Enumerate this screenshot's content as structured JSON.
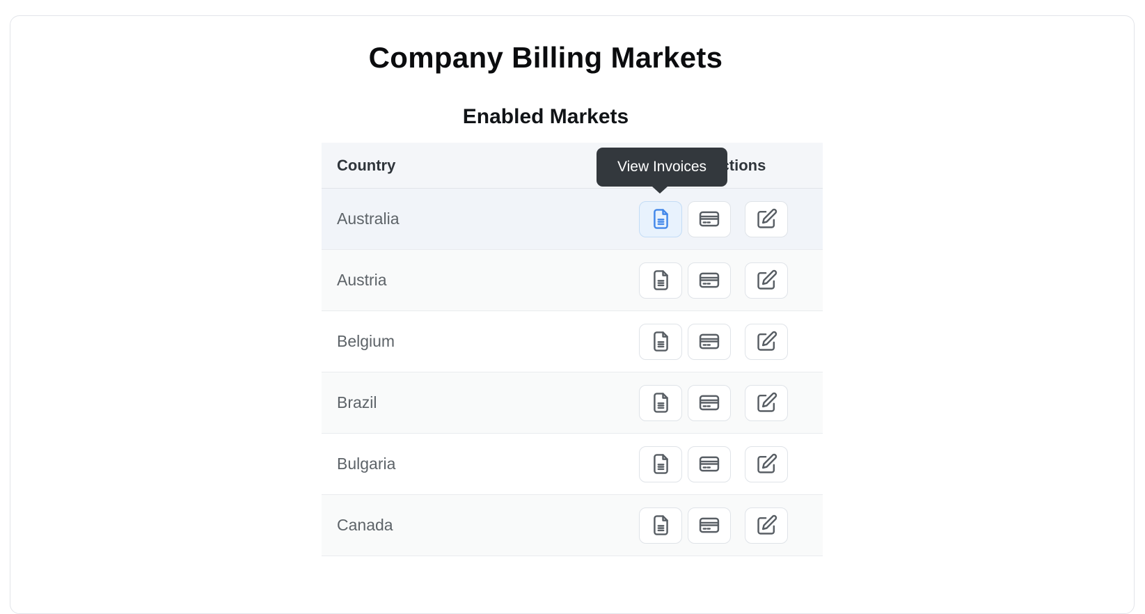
{
  "page": {
    "title": "Company Billing Markets",
    "subtitle": "Enabled Markets"
  },
  "tooltip": {
    "text": "View Invoices"
  },
  "table": {
    "headers": {
      "country": "Country",
      "actions": "Actions"
    },
    "action_buttons": [
      {
        "name": "view-invoices-button",
        "icon": "file-text-icon"
      },
      {
        "name": "payment-methods-button",
        "icon": "credit-card-icon"
      },
      {
        "name": "edit-market-button",
        "icon": "edit-icon"
      }
    ],
    "rows": [
      {
        "country": "Australia",
        "highlighted": true,
        "active_button": "view-invoices-button"
      },
      {
        "country": "Austria",
        "highlighted": false
      },
      {
        "country": "Belgium",
        "highlighted": false
      },
      {
        "country": "Brazil",
        "highlighted": false
      },
      {
        "country": "Bulgaria",
        "highlighted": false
      },
      {
        "country": "Canada",
        "highlighted": false
      }
    ]
  },
  "colors": {
    "accent_blue": "#4388ea",
    "active_button_bg": "#e8f2fd",
    "active_button_border": "#c3dcf6",
    "tooltip_bg": "#33383d",
    "header_bg": "#f4f6f9",
    "stripe_bg": "#f9fafa",
    "hover_row_bg": "#f1f4f9",
    "card_border": "#e2e4e9"
  }
}
